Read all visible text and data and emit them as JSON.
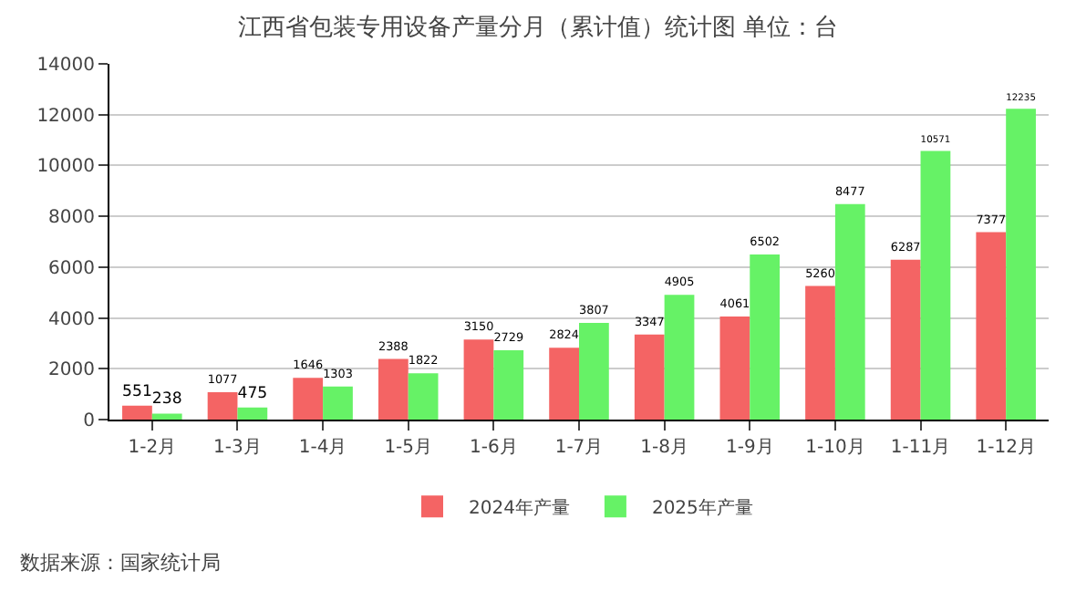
{
  "chart_data": {
    "type": "bar",
    "title": "江西省包装专用设备产量分月（累计值）统计图 单位：台",
    "categories": [
      "1-2月",
      "1-3月",
      "1-4月",
      "1-5月",
      "1-6月",
      "1-7月",
      "1-8月",
      "1-9月",
      "1-10月",
      "1-11月",
      "1-12月"
    ],
    "series": [
      {
        "name": "2024年产量",
        "color": "#f46464",
        "values": [
          551,
          1077,
          1646,
          2388,
          3150,
          2824,
          3347,
          4061,
          5260,
          6287,
          7377
        ]
      },
      {
        "name": "2025年产量",
        "color": "#66f266",
        "values": [
          238,
          475,
          1303,
          1822,
          2729,
          3807,
          4905,
          6502,
          8477,
          10571,
          12235
        ]
      }
    ],
    "ylim": [
      0,
      14000
    ],
    "yticks": [
      0,
      2000,
      4000,
      6000,
      8000,
      10000,
      12000,
      14000
    ],
    "grid": "y",
    "legend": "bottom",
    "data_labels": true,
    "annotations": [
      "数据来源：国家统计局"
    ]
  }
}
